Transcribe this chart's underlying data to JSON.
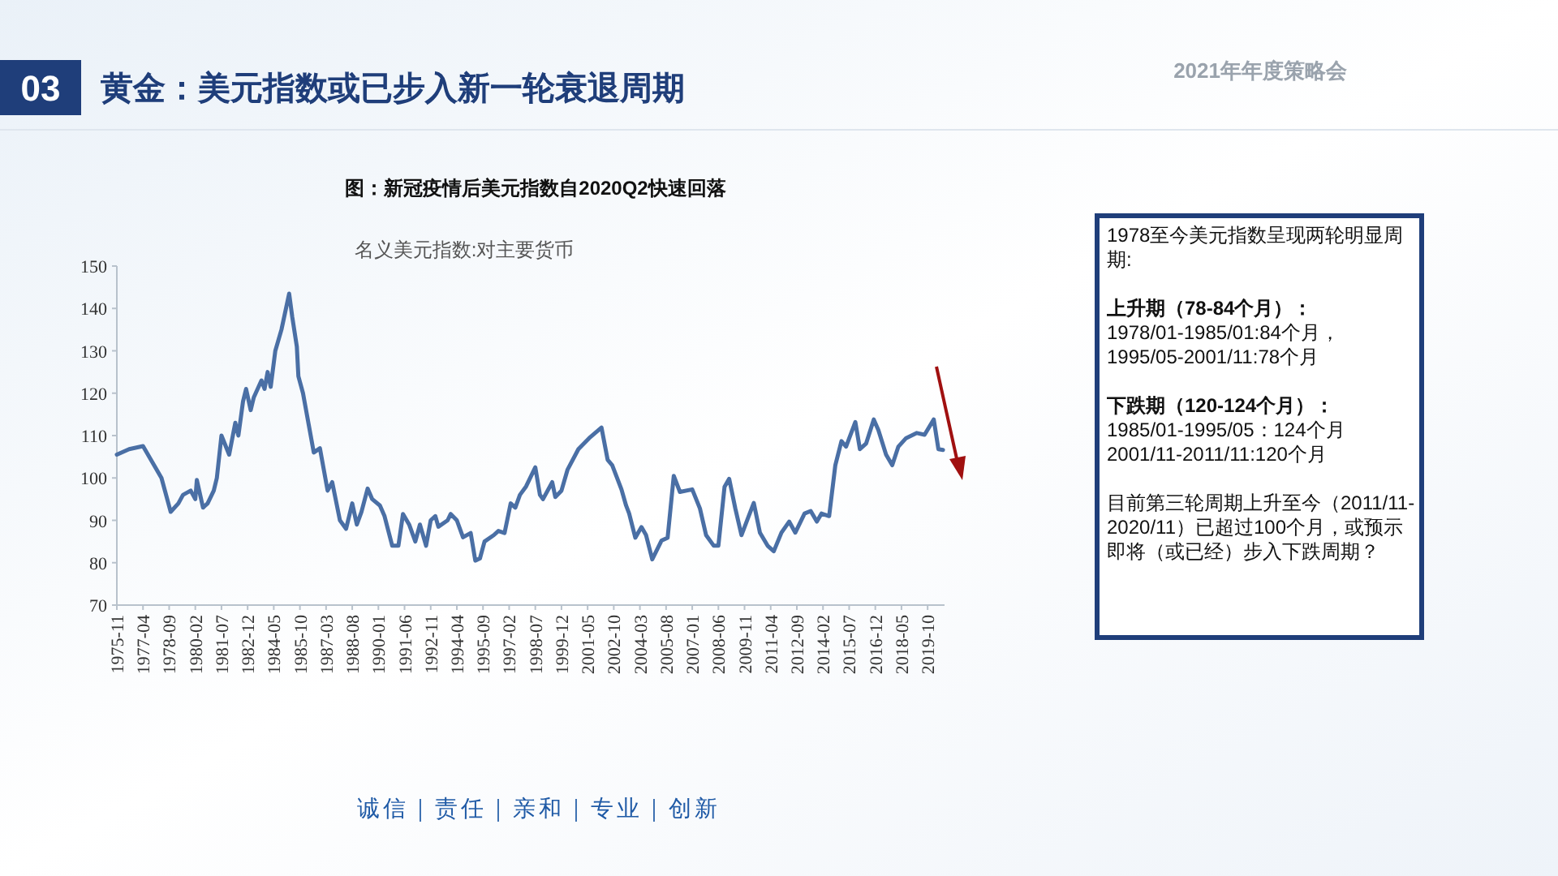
{
  "chart_data": {
    "type": "line",
    "title": "黄金：美元指数或已步入新一轮衰退周期",
    "subtitle": "图：新冠疫情后美元指数自2020Q2快速回落",
    "annotations": [
      "名义美元指数:对主要货币",
      "03",
      "2021年年度策略会",
      "诚信｜责任｜亲和｜专业｜创新",
      "1978至今美元指数呈现两轮明显周期:",
      "上升期（78-84个月）：",
      "1978/01-1985/01:84个月，",
      "1995/05-2001/11:78个月",
      "下跌期（120-124个月）：",
      "1985/01-1995/05：124个月",
      "2001/11-2011/11:120个月",
      "目前第三轮周期上升至今（2011/11-2020/11）已超过100个月，或预示即将（或已经）步入下跌周期？"
    ],
    "series": [
      {
        "color": "#4a6fa5",
        "x": [
          "1975-11",
          "1976-07",
          "1977-04",
          "1978-04",
          "1978-10",
          "1979-03",
          "1979-06",
          "1979-11",
          "1980-02",
          "1980-03",
          "1980-07",
          "1980-10",
          "1981-02",
          "1981-04",
          "1981-07",
          "1981-12",
          "1982-04",
          "1982-06",
          "1982-09",
          "1982-11",
          "1983-02",
          "1983-04",
          "1983-09",
          "1983-11",
          "1984-01",
          "1984-03",
          "1984-06",
          "1984-10",
          "1985-03",
          "1985-05",
          "1985-08",
          "1985-09",
          "1985-12",
          "1986-04",
          "1986-07",
          "1986-11",
          "1987-04",
          "1987-07",
          "1987-12",
          "1988-04",
          "1988-08",
          "1988-11",
          "1989-02",
          "1989-06",
          "1989-09",
          "1990-02",
          "1990-05",
          "1990-10",
          "1991-02",
          "1991-05",
          "1991-09",
          "1992-01",
          "1992-04",
          "1992-08",
          "1992-11",
          "1993-02",
          "1993-04",
          "1993-10",
          "1993-12",
          "1994-04",
          "1994-08",
          "1995-01",
          "1995-04",
          "1995-07",
          "1995-10",
          "1996-04",
          "1996-07",
          "1996-11",
          "1997-03",
          "1997-06",
          "1997-09",
          "1998-01",
          "1998-07",
          "1998-10",
          "1998-12",
          "1999-06",
          "1999-08",
          "1999-12",
          "2000-04",
          "2000-11",
          "2001-06",
          "2002-02",
          "2002-06",
          "2002-09",
          "2003-03",
          "2003-06",
          "2003-08",
          "2003-12",
          "2004-04",
          "2004-07",
          "2004-11",
          "2005-05",
          "2005-09",
          "2006-01",
          "2006-05",
          "2007-01",
          "2007-06",
          "2007-10",
          "2008-03",
          "2008-06",
          "2008-10",
          "2009-01",
          "2009-05",
          "2009-09",
          "2010-01",
          "2010-05",
          "2010-09",
          "2011-02",
          "2011-06",
          "2011-11",
          "2012-04",
          "2012-08",
          "2013-02",
          "2013-06",
          "2013-10",
          "2014-01",
          "2014-06",
          "2014-10",
          "2015-02",
          "2015-05",
          "2015-11",
          "2016-02",
          "2016-06",
          "2016-11",
          "2017-02",
          "2017-07",
          "2017-11",
          "2018-03",
          "2018-08",
          "2019-03",
          "2019-08",
          "2020-02",
          "2020-05",
          "2020-08"
        ],
        "values": [
          105.5,
          106.8,
          107.5,
          100,
          92,
          94,
          96,
          97,
          95,
          99.5,
          93,
          94,
          97,
          100,
          110,
          105.5,
          113,
          110,
          118,
          121,
          116,
          119,
          123,
          121,
          125,
          121.5,
          130,
          135,
          143.5,
          138,
          131,
          124,
          120,
          112,
          106,
          107,
          97,
          99,
          90,
          88,
          94,
          89,
          92,
          97.5,
          95,
          93.5,
          91,
          84,
          84,
          91.5,
          89,
          85,
          89,
          84,
          90,
          91,
          88.5,
          90,
          91.5,
          90,
          86,
          87,
          80.5,
          81,
          85,
          86.5,
          87.5,
          87,
          94,
          93,
          96,
          98,
          102.5,
          96,
          95,
          99,
          95.5,
          97,
          102,
          106.8,
          109.4,
          111.9,
          104.3,
          103,
          97.3,
          93.5,
          91.6,
          85.9,
          88.4,
          86.5,
          80.8,
          85.2,
          85.9,
          100.5,
          96.7,
          97.3,
          92.8,
          86.5,
          84,
          84,
          97.9,
          99.8,
          92.8,
          86.5,
          90.3,
          94.1,
          87.1,
          84,
          82.7,
          87.1,
          89.7,
          87.1,
          91.6,
          92.2,
          89.7,
          91.6,
          91,
          103,
          108.7,
          107.4,
          113.2,
          106.8,
          108.1,
          113.8,
          111.3,
          105.5,
          103,
          107.4,
          109.4,
          110.6,
          110.2,
          113.8,
          106.8,
          106.6
        ]
      }
    ],
    "xlim": [
      "1975-11",
      "2020-09"
    ],
    "xticks": [
      "1975-11",
      "1977-04",
      "1978-09",
      "1980-02",
      "1981-07",
      "1982-12",
      "1984-05",
      "1985-10",
      "1987-03",
      "1988-08",
      "1990-01",
      "1991-06",
      "1992-11",
      "1994-04",
      "1995-09",
      "1997-02",
      "1998-07",
      "1999-12",
      "2001-05",
      "2002-10",
      "2004-03",
      "2005-08",
      "2007-01",
      "2008-06",
      "2009-11",
      "2011-04",
      "2012-09",
      "2014-02",
      "2015-07",
      "2016-12",
      "2018-05",
      "2019-10"
    ],
    "ylim": [
      70,
      150
    ],
    "yticks": [
      70,
      80,
      90,
      100,
      110,
      120,
      130,
      140,
      150
    ],
    "grid": false,
    "marker": "none",
    "line_style": "solid"
  }
}
